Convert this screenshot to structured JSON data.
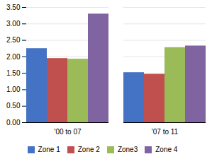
{
  "chart_data": {
    "type": "bar",
    "categories": [
      "'00 to 07",
      "'07 to 11"
    ],
    "series": [
      {
        "name": "Zone 1",
        "color": "#4472c4",
        "values": [
          2.25,
          1.52
        ]
      },
      {
        "name": "Zone 2",
        "color": "#c0504d",
        "values": [
          1.95,
          1.47
        ]
      },
      {
        "name": "Zone3",
        "color": "#9bbb59",
        "values": [
          1.93,
          2.28
        ]
      },
      {
        "name": "Zone 4",
        "color": "#8064a2",
        "values": [
          3.3,
          2.33
        ]
      }
    ],
    "ylim": [
      0,
      3.5
    ],
    "yticks": [
      {
        "value": 0,
        "label": "0.00"
      },
      {
        "value": 0.5,
        "label": "0.50"
      },
      {
        "value": 1,
        "label": "1.00"
      },
      {
        "value": 1.5,
        "label": "1.50"
      },
      {
        "value": 2,
        "label": "2.00"
      },
      {
        "value": 2.5,
        "label": "2.50"
      },
      {
        "value": 3,
        "label": "3.00"
      },
      {
        "value": 3.5,
        "label": "3.50"
      }
    ],
    "grid": true,
    "legend": "bottom"
  }
}
